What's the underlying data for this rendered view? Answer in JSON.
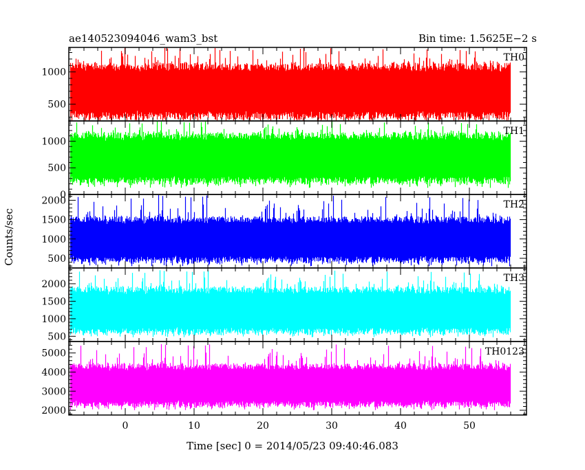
{
  "header": {
    "title": "ae140523094046_wam3_bst",
    "bin_time": "Bin time: 1.5625E−2 s"
  },
  "ylabel": "Counts/sec",
  "xlabel": "Time [sec] 0 = 2014/05/23 09:40:46.083",
  "chart_data": {
    "type": "line",
    "title": "ae140523094046_wam3_bst",
    "xlabel": "Time [sec] 0 = 2014/05/23 09:40:46.083",
    "ylabel": "Counts/sec",
    "xlim": [
      -8.2,
      58.3
    ],
    "data_x_range": [
      -8,
      56
    ],
    "x_ticks": [
      0,
      10,
      20,
      30,
      40,
      50
    ],
    "panels": [
      {
        "name": "TH0",
        "color": "#ff0000",
        "ylim": [
          240,
          1380
        ],
        "y_ticks": [
          500,
          1000
        ],
        "typical_range": [
          320,
          1090
        ],
        "peak_range": [
          1100,
          1380
        ],
        "mean": 700
      },
      {
        "name": "TH1",
        "color": "#00ff00",
        "ylim": [
          0,
          1380
        ],
        "y_ticks": [
          0,
          500,
          1000
        ],
        "typical_range": [
          250,
          1100
        ],
        "peak_range": [
          1100,
          1380
        ],
        "mean": 680
      },
      {
        "name": "TH2",
        "color": "#0000ff",
        "ylim": [
          250,
          2150
        ],
        "y_ticks": [
          500,
          1000,
          1500,
          2000
        ],
        "typical_range": [
          450,
          1500
        ],
        "peak_range": [
          1500,
          2150
        ],
        "mean": 980
      },
      {
        "name": "TH3",
        "color": "#00ffff",
        "ylim": [
          350,
          2450
        ],
        "y_ticks": [
          500,
          1000,
          1500,
          2000
        ],
        "typical_range": [
          650,
          1850
        ],
        "peak_range": [
          1850,
          2400
        ],
        "mean": 1230
      },
      {
        "name": "TH0123",
        "color": "#ff00ff",
        "ylim": [
          1750,
          5600
        ],
        "y_ticks": [
          2000,
          3000,
          4000,
          5000
        ],
        "typical_range": [
          2300,
          4300
        ],
        "peak_range": [
          4300,
          5500
        ],
        "mean": 3300
      }
    ]
  }
}
